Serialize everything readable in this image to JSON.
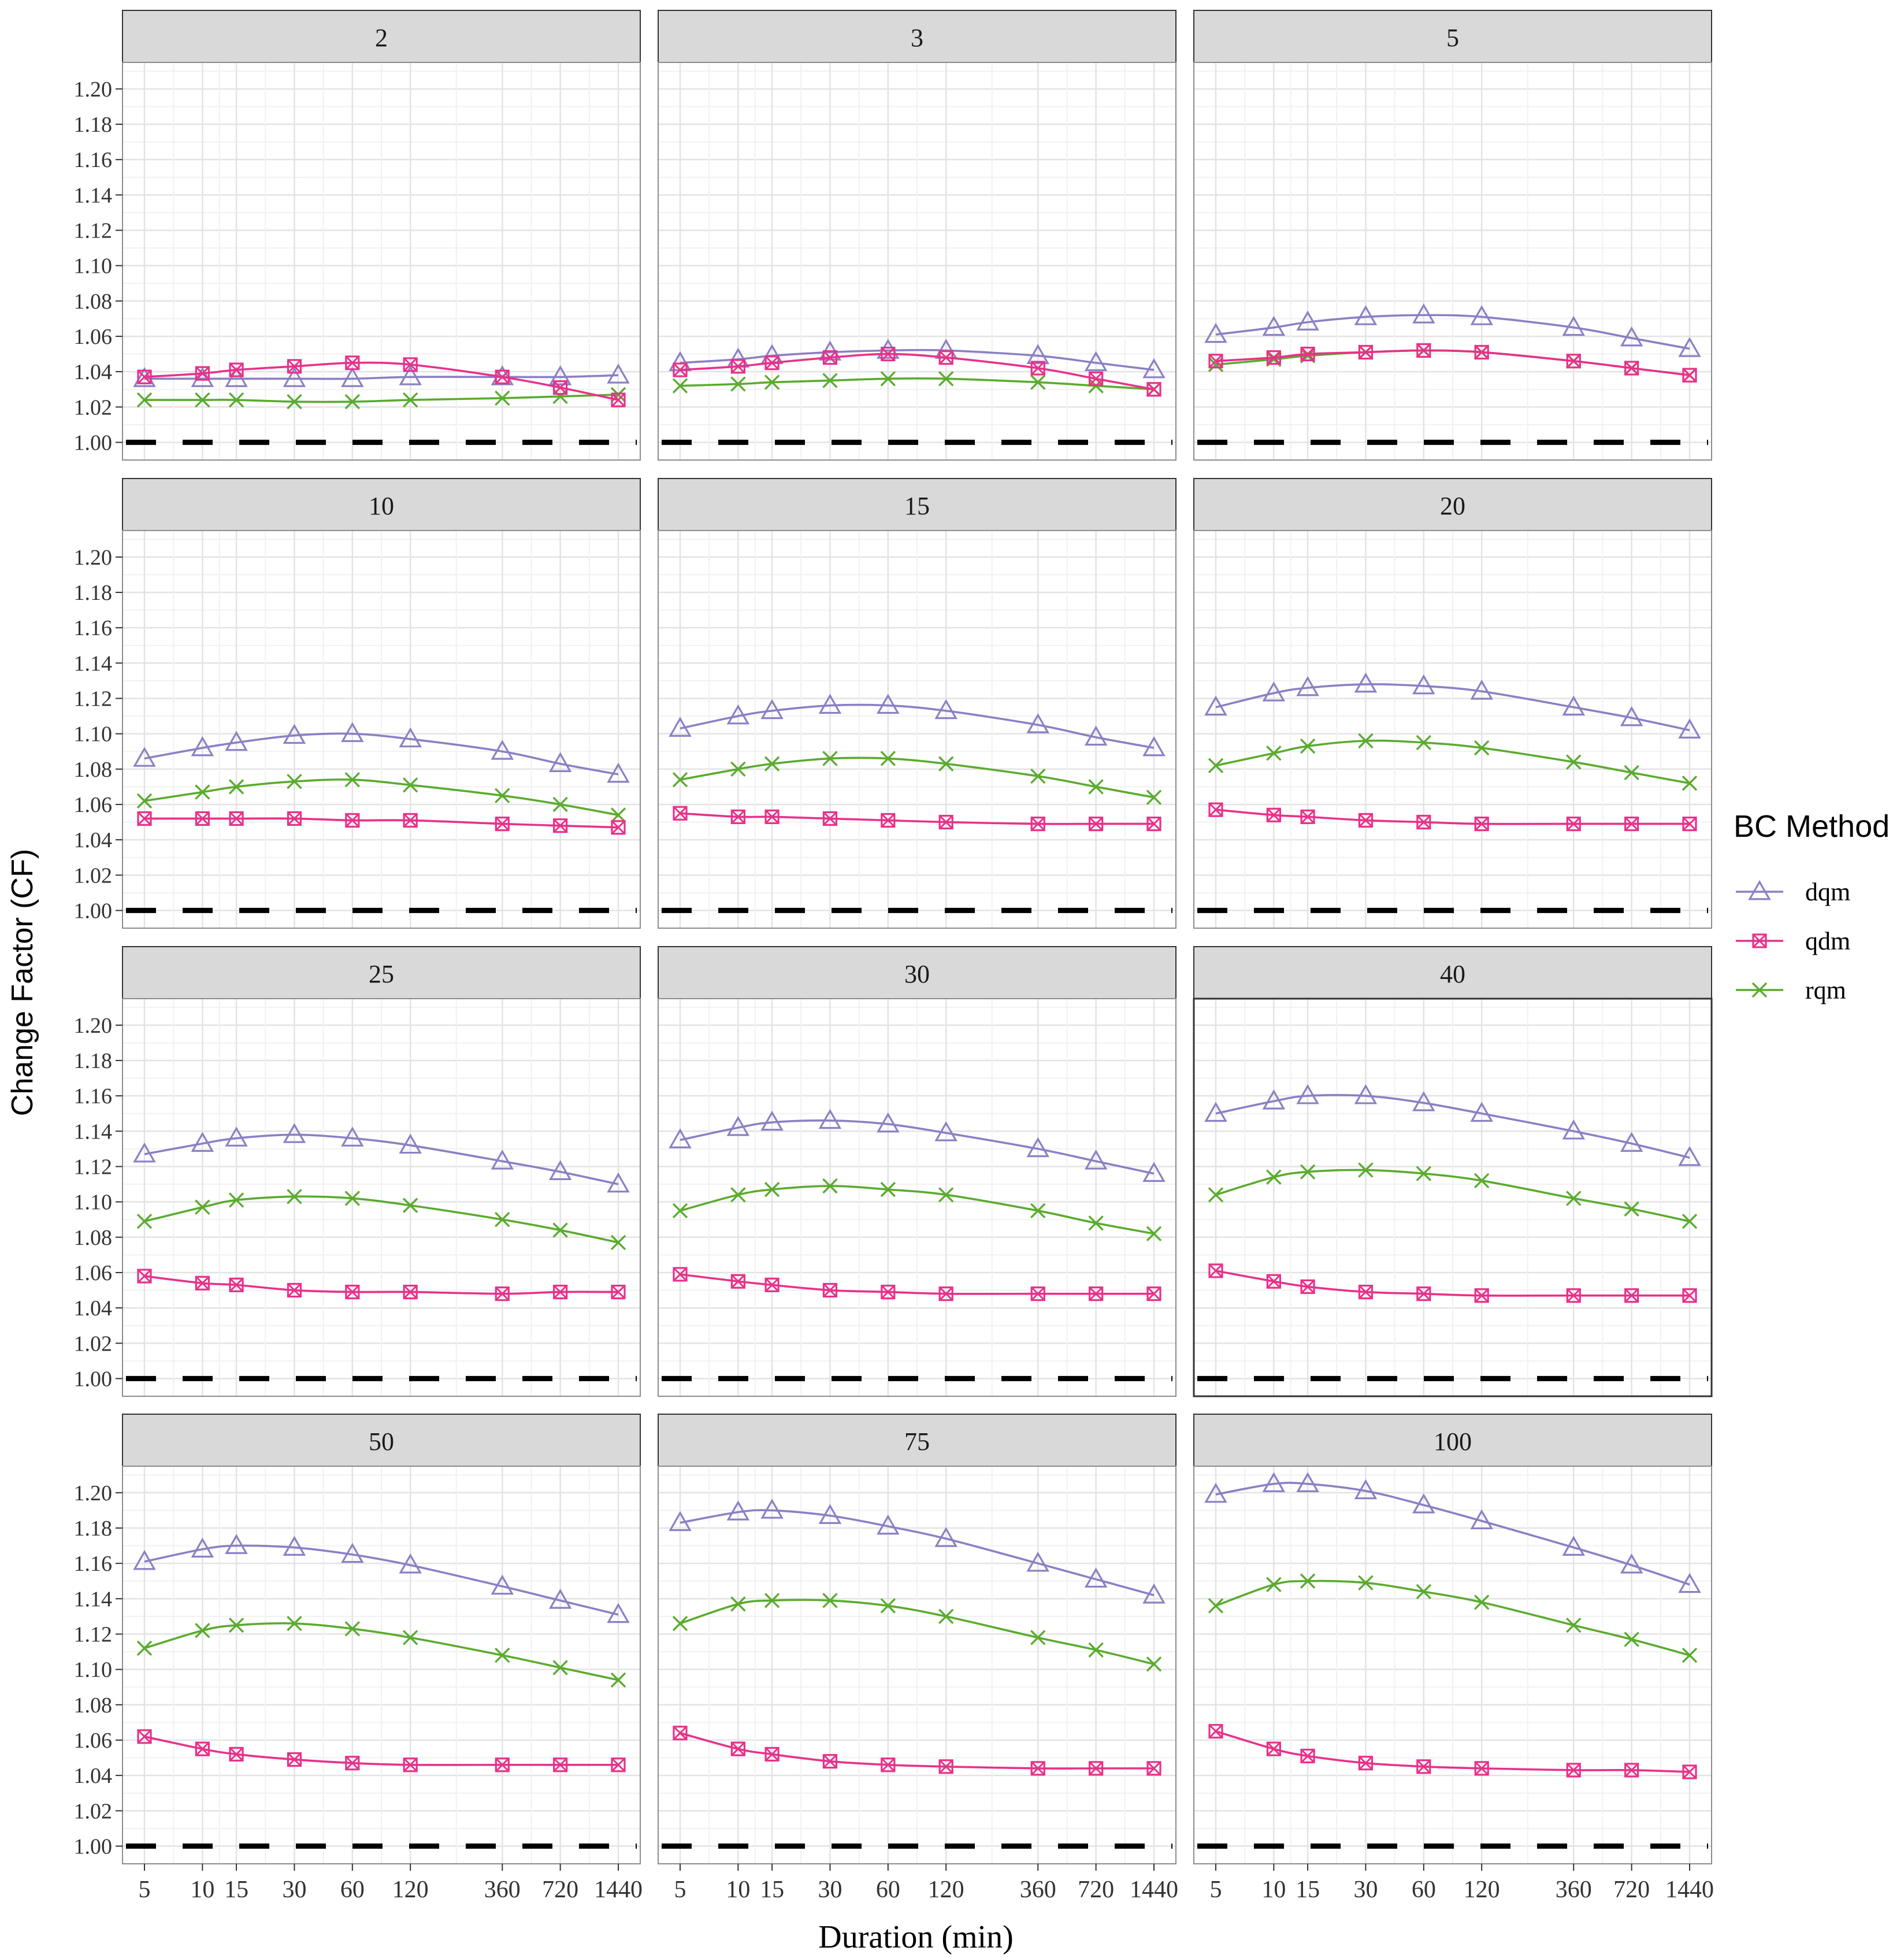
{
  "chart_data": {
    "type": "line",
    "facet_titles": [
      "2",
      "3",
      "5",
      "10",
      "15",
      "20",
      "25",
      "30",
      "40",
      "50",
      "75",
      "100"
    ],
    "x": [
      "5",
      "10",
      "15",
      "30",
      "60",
      "120",
      "360",
      "720",
      "1440"
    ],
    "x_log_values": [
      5,
      10,
      15,
      30,
      60,
      120,
      360,
      720,
      1440
    ],
    "xlabel": "Duration (min)",
    "ylabel": "Change Factor (CF)",
    "ylim": [
      0.99,
      1.215
    ],
    "yticks": [
      "1.00",
      "1.02",
      "1.04",
      "1.06",
      "1.08",
      "1.10",
      "1.12",
      "1.14",
      "1.16",
      "1.18",
      "1.20"
    ],
    "x_scale": "log",
    "reference_line": 1.0,
    "legend": {
      "title": "BC Method",
      "placement": "right",
      "items": [
        {
          "name": "dqm",
          "color": "#8c7fc4",
          "marker": "triangle"
        },
        {
          "name": "qdm",
          "color": "#e8318a",
          "marker": "square-cross"
        },
        {
          "name": "rqm",
          "color": "#5aab2e",
          "marker": "cross"
        }
      ]
    },
    "facets": [
      {
        "title": "2",
        "dqm": [
          1.036,
          1.036,
          1.036,
          1.036,
          1.036,
          1.037,
          1.037,
          1.037,
          1.038
        ],
        "qdm": [
          1.037,
          1.039,
          1.041,
          1.043,
          1.045,
          1.044,
          1.037,
          1.031,
          1.024
        ],
        "rqm": [
          1.024,
          1.024,
          1.024,
          1.023,
          1.023,
          1.024,
          1.025,
          1.026,
          1.027
        ]
      },
      {
        "title": "3",
        "dqm": [
          1.045,
          1.047,
          1.049,
          1.051,
          1.052,
          1.052,
          1.049,
          1.045,
          1.041
        ],
        "qdm": [
          1.041,
          1.043,
          1.045,
          1.048,
          1.05,
          1.048,
          1.042,
          1.036,
          1.03
        ],
        "rqm": [
          1.032,
          1.033,
          1.034,
          1.035,
          1.036,
          1.036,
          1.034,
          1.032,
          1.03
        ]
      },
      {
        "title": "5",
        "dqm": [
          1.061,
          1.065,
          1.068,
          1.071,
          1.072,
          1.071,
          1.065,
          1.059,
          1.053
        ],
        "qdm": [
          1.046,
          1.048,
          1.05,
          1.051,
          1.052,
          1.051,
          1.046,
          1.042,
          1.038
        ],
        "rqm": [
          1.044,
          1.047,
          1.049,
          1.051,
          1.052,
          1.051,
          1.046,
          1.042,
          1.038
        ]
      },
      {
        "title": "10",
        "dqm": [
          1.086,
          1.092,
          1.095,
          1.099,
          1.1,
          1.097,
          1.09,
          1.083,
          1.077
        ],
        "qdm": [
          1.052,
          1.052,
          1.052,
          1.052,
          1.051,
          1.051,
          1.049,
          1.048,
          1.047
        ],
        "rqm": [
          1.062,
          1.067,
          1.07,
          1.073,
          1.074,
          1.071,
          1.065,
          1.06,
          1.054
        ]
      },
      {
        "title": "15",
        "dqm": [
          1.103,
          1.11,
          1.113,
          1.116,
          1.116,
          1.113,
          1.105,
          1.098,
          1.092
        ],
        "qdm": [
          1.055,
          1.053,
          1.053,
          1.052,
          1.051,
          1.05,
          1.049,
          1.049,
          1.049
        ],
        "rqm": [
          1.074,
          1.08,
          1.083,
          1.086,
          1.086,
          1.083,
          1.076,
          1.07,
          1.064
        ]
      },
      {
        "title": "20",
        "dqm": [
          1.115,
          1.123,
          1.126,
          1.128,
          1.127,
          1.124,
          1.115,
          1.109,
          1.102
        ],
        "qdm": [
          1.057,
          1.054,
          1.053,
          1.051,
          1.05,
          1.049,
          1.049,
          1.049,
          1.049
        ],
        "rqm": [
          1.082,
          1.089,
          1.093,
          1.096,
          1.095,
          1.092,
          1.084,
          1.078,
          1.072
        ]
      },
      {
        "title": "25",
        "dqm": [
          1.127,
          1.133,
          1.136,
          1.138,
          1.136,
          1.132,
          1.123,
          1.117,
          1.11
        ],
        "qdm": [
          1.058,
          1.054,
          1.053,
          1.05,
          1.049,
          1.049,
          1.048,
          1.049,
          1.049
        ],
        "rqm": [
          1.089,
          1.097,
          1.101,
          1.103,
          1.102,
          1.098,
          1.09,
          1.084,
          1.077
        ]
      },
      {
        "title": "30",
        "dqm": [
          1.135,
          1.142,
          1.145,
          1.146,
          1.144,
          1.139,
          1.13,
          1.123,
          1.116
        ],
        "qdm": [
          1.059,
          1.055,
          1.053,
          1.05,
          1.049,
          1.048,
          1.048,
          1.048,
          1.048
        ],
        "rqm": [
          1.095,
          1.104,
          1.107,
          1.109,
          1.107,
          1.104,
          1.095,
          1.088,
          1.082
        ]
      },
      {
        "title": "40",
        "dqm": [
          1.15,
          1.157,
          1.16,
          1.16,
          1.156,
          1.15,
          1.14,
          1.133,
          1.125
        ],
        "qdm": [
          1.061,
          1.055,
          1.052,
          1.049,
          1.048,
          1.047,
          1.047,
          1.047,
          1.047
        ],
        "rqm": [
          1.104,
          1.114,
          1.117,
          1.118,
          1.116,
          1.112,
          1.102,
          1.096,
          1.089
        ]
      },
      {
        "title": "50",
        "dqm": [
          1.161,
          1.168,
          1.17,
          1.169,
          1.165,
          1.159,
          1.147,
          1.139,
          1.131
        ],
        "qdm": [
          1.062,
          1.055,
          1.052,
          1.049,
          1.047,
          1.046,
          1.046,
          1.046,
          1.046
        ],
        "rqm": [
          1.112,
          1.122,
          1.125,
          1.126,
          1.123,
          1.118,
          1.108,
          1.101,
          1.094
        ]
      },
      {
        "title": "75",
        "dqm": [
          1.183,
          1.189,
          1.19,
          1.187,
          1.181,
          1.174,
          1.16,
          1.151,
          1.142
        ],
        "qdm": [
          1.064,
          1.055,
          1.052,
          1.048,
          1.046,
          1.045,
          1.044,
          1.044,
          1.044
        ],
        "rqm": [
          1.126,
          1.137,
          1.139,
          1.139,
          1.136,
          1.13,
          1.118,
          1.111,
          1.103
        ]
      },
      {
        "title": "100",
        "dqm": [
          1.199,
          1.205,
          1.205,
          1.201,
          1.193,
          1.184,
          1.169,
          1.159,
          1.148
        ],
        "qdm": [
          1.065,
          1.055,
          1.051,
          1.047,
          1.045,
          1.044,
          1.043,
          1.043,
          1.042
        ],
        "rqm": [
          1.136,
          1.148,
          1.15,
          1.149,
          1.144,
          1.138,
          1.125,
          1.117,
          1.108
        ]
      }
    ]
  }
}
